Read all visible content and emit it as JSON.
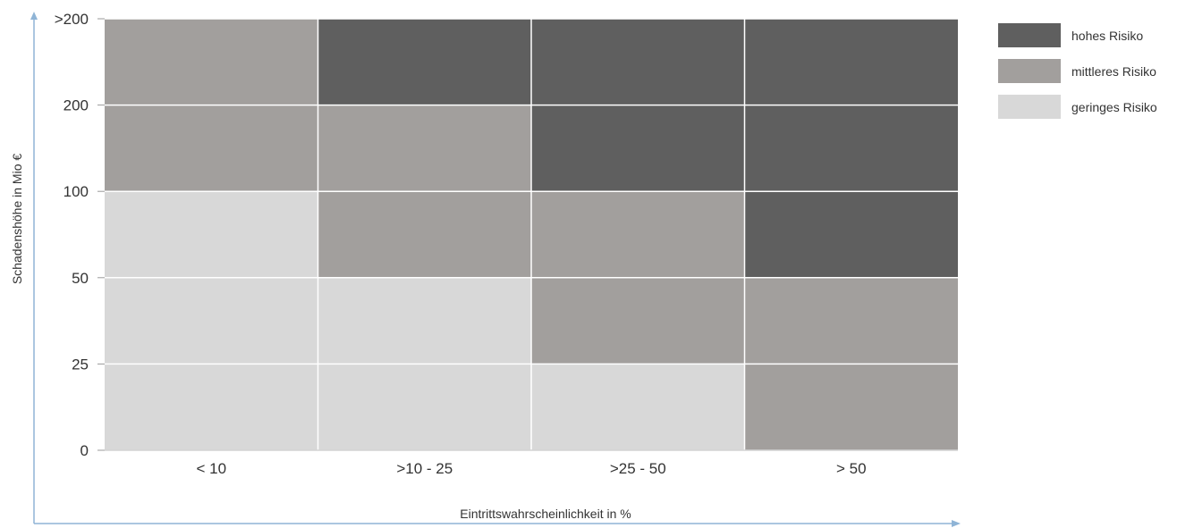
{
  "chart_data": {
    "type": "heatmap",
    "title": "",
    "xlabel": "Eintrittswahrscheinlichkeit in %",
    "ylabel": "Schadenshöhe in Mio €",
    "x_categories": [
      "< 10",
      ">10 - 25",
      ">25 - 50",
      "> 50"
    ],
    "y_tick_labels": [
      "0",
      "25",
      "50",
      "100",
      "200",
      ">200"
    ],
    "y_bands": [
      "0-25",
      "25-50",
      "50-100",
      "100-200",
      ">200"
    ],
    "risk_levels": [
      {
        "key": "high",
        "label": "hohes Risiko",
        "color": "#5f5f5f"
      },
      {
        "key": "medium",
        "label": "mittleres Risiko",
        "color": "#a29f9d"
      },
      {
        "key": "low",
        "label": "geringes Risiko",
        "color": "#d8d8d8"
      }
    ],
    "cells": [
      [
        "low",
        "low",
        "low",
        "medium"
      ],
      [
        "low",
        "low",
        "medium",
        "medium"
      ],
      [
        "low",
        "medium",
        "medium",
        "high"
      ],
      [
        "medium",
        "medium",
        "high",
        "high"
      ],
      [
        "medium",
        "high",
        "high",
        "high"
      ]
    ],
    "legend_position": "top-right",
    "grid": true,
    "axis_color": "#8fb4d6",
    "grid_color": "#ffffff"
  }
}
